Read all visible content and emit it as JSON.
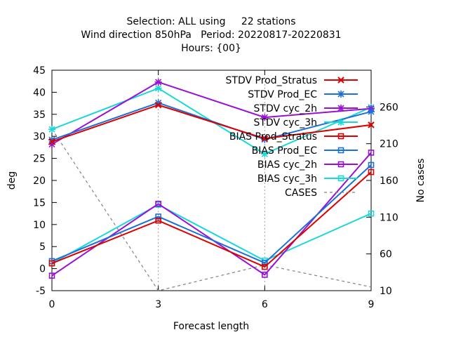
{
  "chart_data": {
    "type": "line",
    "title_lines": [
      "Selection: ALL using     22 stations",
      "Wind direction 850hPa   Period: 20220817-20220831",
      "Hours: {00}"
    ],
    "xlabel": "Forecast length",
    "ylabel": "deg",
    "y2label": "No cases",
    "x": [
      0,
      3,
      6,
      9
    ],
    "xlim": [
      0,
      9
    ],
    "xticks": [
      0,
      3,
      6,
      9
    ],
    "ylim": [
      -5,
      45
    ],
    "yticks": [
      -5,
      0,
      5,
      10,
      15,
      20,
      25,
      30,
      35,
      40,
      45
    ],
    "y2lim": [
      10,
      310
    ],
    "y2ticks": [
      10,
      60,
      110,
      160,
      210,
      260
    ],
    "grid": "vertical dotted at x ticks",
    "legend_position": "top-right",
    "series": [
      {
        "name": "STDV Prod_Stratus",
        "color": "#dd0000",
        "marker": "x-cross",
        "axis": "y",
        "values": [
          28.8,
          37.1,
          29.5,
          32.6
        ]
      },
      {
        "name": "STDV Prod_EC",
        "color": "#1a6fd8",
        "marker": "star",
        "axis": "y",
        "values": [
          29.2,
          37.6,
          29.3,
          35.6
        ]
      },
      {
        "name": "STDV cyc_2h",
        "color": "#9a0fd8",
        "marker": "star",
        "axis": "y",
        "values": [
          28.2,
          42.3,
          34.3,
          36.3
        ]
      },
      {
        "name": "STDV cyc_3h",
        "color": "#19d8d8",
        "marker": "star",
        "axis": "y",
        "values": [
          31.6,
          40.9,
          26.0,
          36.6
        ]
      },
      {
        "name": "BIAS Prod_Stratus",
        "color": "#dd0000",
        "marker": "square",
        "axis": "y",
        "values": [
          1.2,
          10.9,
          0.4,
          21.9
        ]
      },
      {
        "name": "BIAS Prod_EC",
        "color": "#1a6fd8",
        "marker": "square",
        "axis": "y",
        "values": [
          1.7,
          11.8,
          1.3,
          23.5
        ]
      },
      {
        "name": "BIAS cyc_2h",
        "color": "#9a0fd8",
        "marker": "square",
        "axis": "y",
        "values": [
          -1.6,
          14.7,
          -1.4,
          26.3
        ]
      },
      {
        "name": "BIAS cyc_3h",
        "color": "#19d8d8",
        "marker": "square",
        "axis": "y",
        "values": [
          1.2,
          14.5,
          1.8,
          12.5
        ]
      },
      {
        "name": "CASES",
        "color": "#808080",
        "marker": "none",
        "dashed": true,
        "axis": "y2",
        "values": [
          230,
          10,
          45,
          15
        ]
      }
    ]
  }
}
